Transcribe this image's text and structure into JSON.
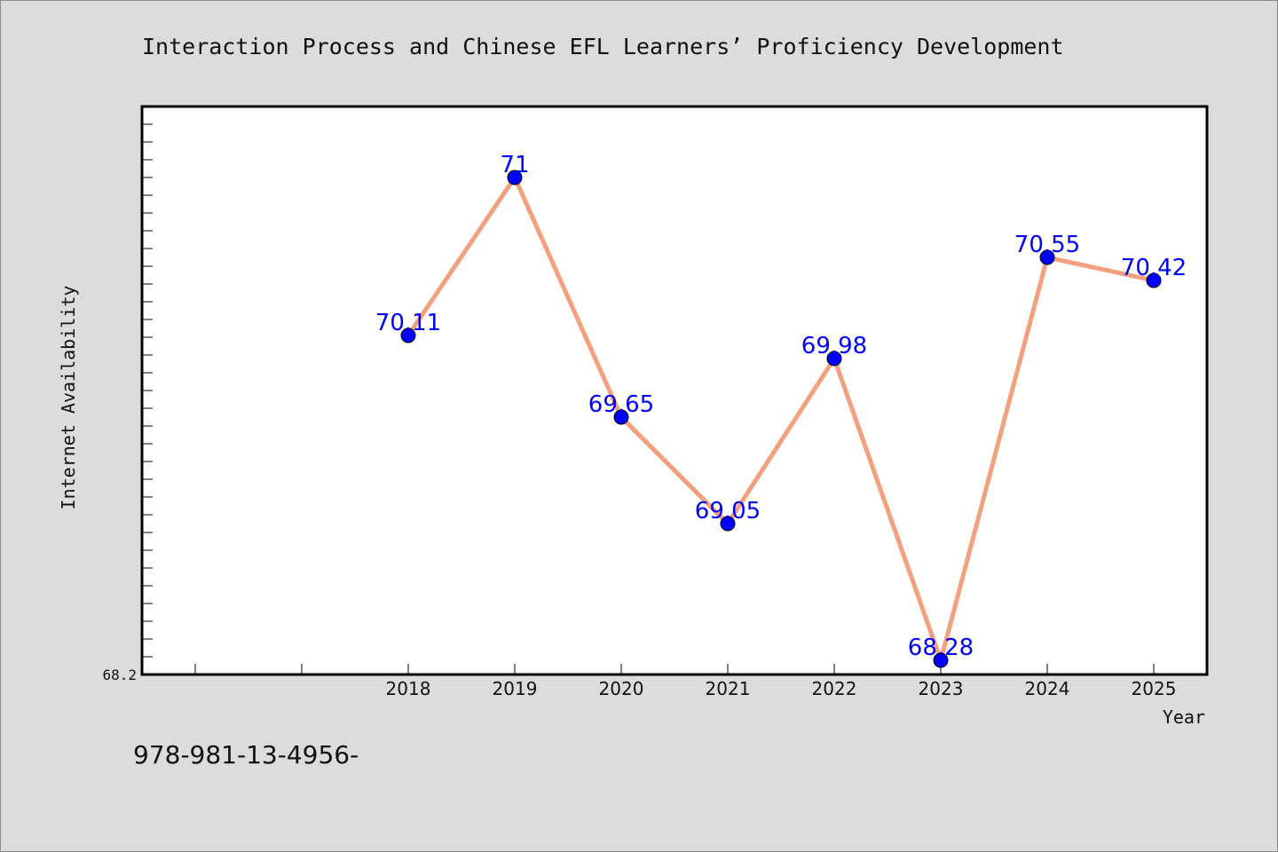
{
  "colors": {
    "background": "#dcdcdc",
    "plot_area": "#ffffff",
    "line": "#f4a07e",
    "marker": "#0000ff",
    "data_label": "#0000ff"
  },
  "footer_text": "978-981-13-4956-",
  "chart_data": {
    "type": "line",
    "title": "Interaction Process and Chinese EFL Learners’ Proficiency Development",
    "xlabel": "Year",
    "ylabel": "Internet Availability",
    "x": [
      "2018",
      "2019",
      "2020",
      "2021",
      "2022",
      "2023",
      "2024",
      "2025"
    ],
    "series": [
      {
        "values": [
          70.11,
          71,
          69.65,
          69.05,
          69.98,
          68.28,
          70.55,
          70.42
        ]
      }
    ],
    "data_labels": [
      "70.11",
      "71",
      "69.65",
      "69.05",
      "69.98",
      "68.28",
      "70.55",
      "70.42"
    ],
    "y_tick_labels": [
      "68.2"
    ],
    "ylim": [
      68.2,
      71.4
    ],
    "grid": false,
    "legend": "none"
  }
}
